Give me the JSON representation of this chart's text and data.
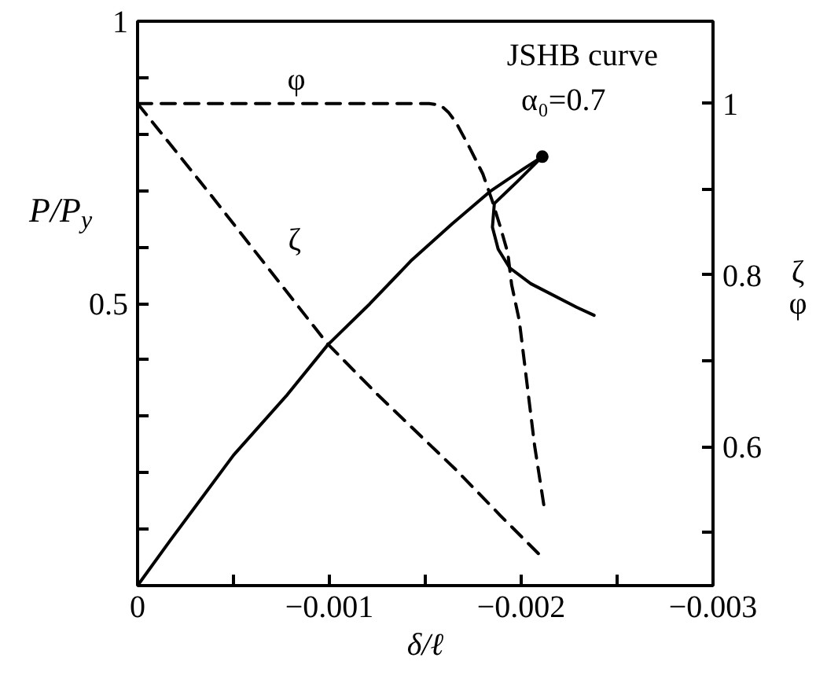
{
  "chart_data": {
    "type": "line",
    "annotations": [
      "JSHB curve",
      "α₀=0.7"
    ],
    "xlabel": "δ/ℓ",
    "ylabel": "P/P$_{y}$",
    "y2label": "ζ\nφ",
    "xlim": [
      0,
      -0.003
    ],
    "xticks": [
      0,
      {
        "value": -0.0005,
        "label": null
      },
      {
        "value": -0.001,
        "label": "−0.001"
      },
      {
        "value": -0.0015,
        "label": null
      },
      {
        "value": -0.002,
        "label": "−0.002"
      },
      {
        "value": -0.0025,
        "label": null
      },
      {
        "value": -0.003,
        "label": "−0.003"
      }
    ],
    "ylim": [
      0,
      1
    ],
    "yticks": [
      {
        "value": 0,
        "label": null
      },
      {
        "value": 0.1,
        "label": null
      },
      {
        "value": 0.2,
        "label": null
      },
      {
        "value": 0.3,
        "label": null
      },
      {
        "value": 0.4,
        "label": null
      },
      0.5,
      {
        "value": 0.6,
        "label": null
      },
      {
        "value": 0.7,
        "label": null
      },
      {
        "value": 0.8,
        "label": null
      },
      {
        "value": 0.9,
        "label": null
      },
      1
    ],
    "y2lim": [
      0.438,
      1.096
    ],
    "y2ticks": [
      {
        "value": 0.5,
        "label": null
      },
      0.6,
      {
        "value": 0.7,
        "label": null
      },
      0.8,
      {
        "value": 0.9,
        "label": null
      },
      1
    ],
    "marker": "none",
    "series": [
      {
        "color": "#000000",
        "line_style": "solid",
        "x": [
          0,
          -0.00017,
          -0.0005,
          -0.00078,
          -0.00099,
          -0.00121,
          -0.00143,
          -0.00164,
          -0.00184,
          -0.00201,
          -0.00211,
          -0.00198,
          -0.00186,
          -0.00185,
          -0.00188,
          -0.00194,
          -0.00205,
          -0.00229,
          -0.00238
        ],
        "values": [
          0,
          0.08,
          0.231,
          0.338,
          0.426,
          0.499,
          0.577,
          0.641,
          0.699,
          0.738,
          0.76,
          0.716,
          0.677,
          0.635,
          0.596,
          0.563,
          0.535,
          0.493,
          0.479
        ]
      },
      {
        "name": "φ",
        "color": "#000000",
        "line_style": "dashed",
        "axis": "y2",
        "x": [
          0,
          -0.00152,
          -0.00158,
          -0.00162,
          -0.00166,
          -0.00173,
          -0.0018,
          -0.00185,
          -0.00189,
          -0.00193,
          -0.00195,
          -0.00199,
          -0.00203,
          -0.00207,
          -0.00212
        ],
        "values": [
          1.0,
          1.0,
          0.998,
          0.99,
          0.978,
          0.949,
          0.918,
          0.886,
          0.857,
          0.826,
          0.789,
          0.747,
          0.674,
          0.601,
          0.529
        ]
      },
      {
        "name": "ζ",
        "color": "#000000",
        "line_style": "dashed",
        "axis": "y2",
        "x": [
          0,
          -0.00038,
          -0.00099,
          -0.00125,
          -0.00166,
          -0.00189,
          -0.0021
        ],
        "values": [
          1.0,
          0.894,
          0.72,
          0.661,
          0.573,
          0.52,
          0.473
        ]
      },
      {
        "type": "scatter",
        "color": "#000000",
        "marker": "circle",
        "x": [
          -0.00211
        ],
        "values": [
          0.76
        ]
      }
    ]
  }
}
